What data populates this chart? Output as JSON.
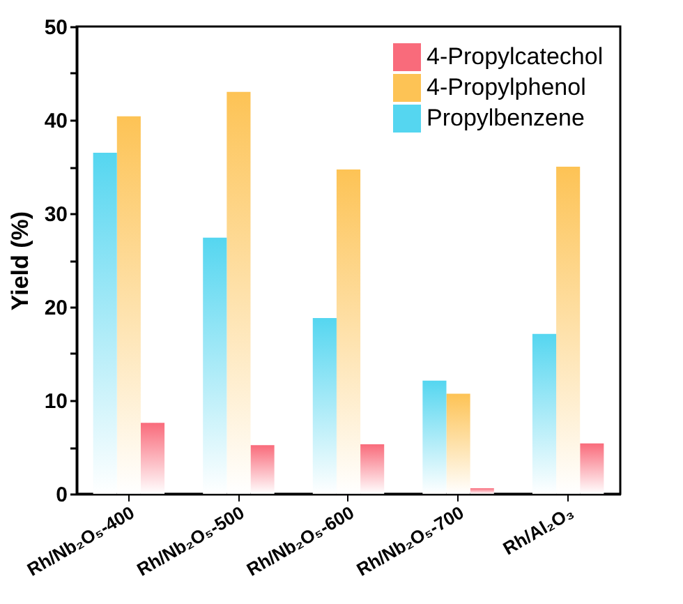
{
  "chart_data": {
    "type": "bar",
    "ylabel": "Yield (%)",
    "categories": [
      "Rh/Nb₂O₅-400",
      "Rh/Nb₂O₅-500",
      "Rh/Nb₂O₅-600",
      "Rh/Nb₂O₅-700",
      "Rh/Al₂O₃"
    ],
    "series": [
      {
        "name": "4-Propylcatechol",
        "color": "#f96b7b",
        "values": [
          7.6,
          5.2,
          5.3,
          0.6,
          5.4
        ]
      },
      {
        "name": "4-Propylphenol",
        "color": "#fdc355",
        "values": [
          40.4,
          43.0,
          34.7,
          10.7,
          35.0
        ]
      },
      {
        "name": "Propylbenzene",
        "color": "#55d6f0",
        "values": [
          36.5,
          27.4,
          18.8,
          12.1,
          17.1
        ]
      }
    ],
    "ylim": [
      0,
      50
    ],
    "yticks": [
      0,
      {
        "value": 5,
        "label": null
      },
      10,
      {
        "value": 15,
        "label": null
      },
      20,
      {
        "value": 25,
        "label": null
      },
      30,
      {
        "value": 35,
        "label": null
      },
      40,
      {
        "value": 45,
        "label": null
      },
      50
    ],
    "legend": "top right",
    "grid": false
  }
}
